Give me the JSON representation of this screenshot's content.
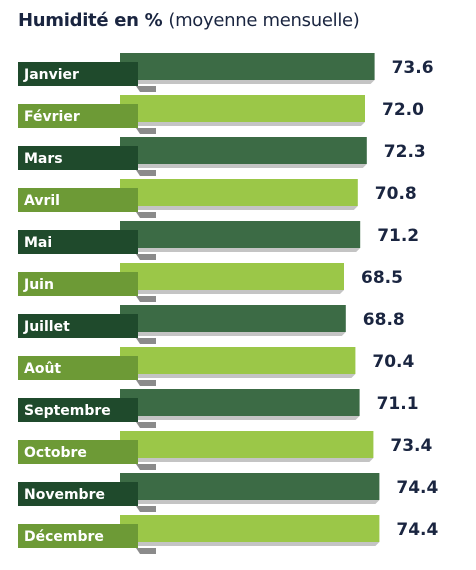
{
  "chart_data": {
    "type": "bar",
    "orientation": "horizontal",
    "title": "Humidité en %",
    "subtitle": "(moyenne mensuelle)",
    "categories": [
      "Janvier",
      "Février",
      "Mars",
      "Avril",
      "Mai",
      "Juin",
      "Juillet",
      "Août",
      "Septembre",
      "Octobre",
      "Novembre",
      "Décembre"
    ],
    "values": [
      73.6,
      72.0,
      72.3,
      70.8,
      71.2,
      68.5,
      68.8,
      70.4,
      71.1,
      73.4,
      74.4,
      74.4
    ],
    "value_labels": [
      "73.6",
      "72.0",
      "72.3",
      "70.8",
      "71.2",
      "68.5",
      "68.8",
      "70.4",
      "71.1",
      "73.4",
      "74.4",
      "74.4"
    ],
    "colors": {
      "dark_bar": "#3c6b45",
      "light_bar": "#9bc748",
      "dark_tag": "#1f4a2c",
      "light_tag": "#6d9a36",
      "shadow": "#555555",
      "text": "#1a2540"
    }
  }
}
